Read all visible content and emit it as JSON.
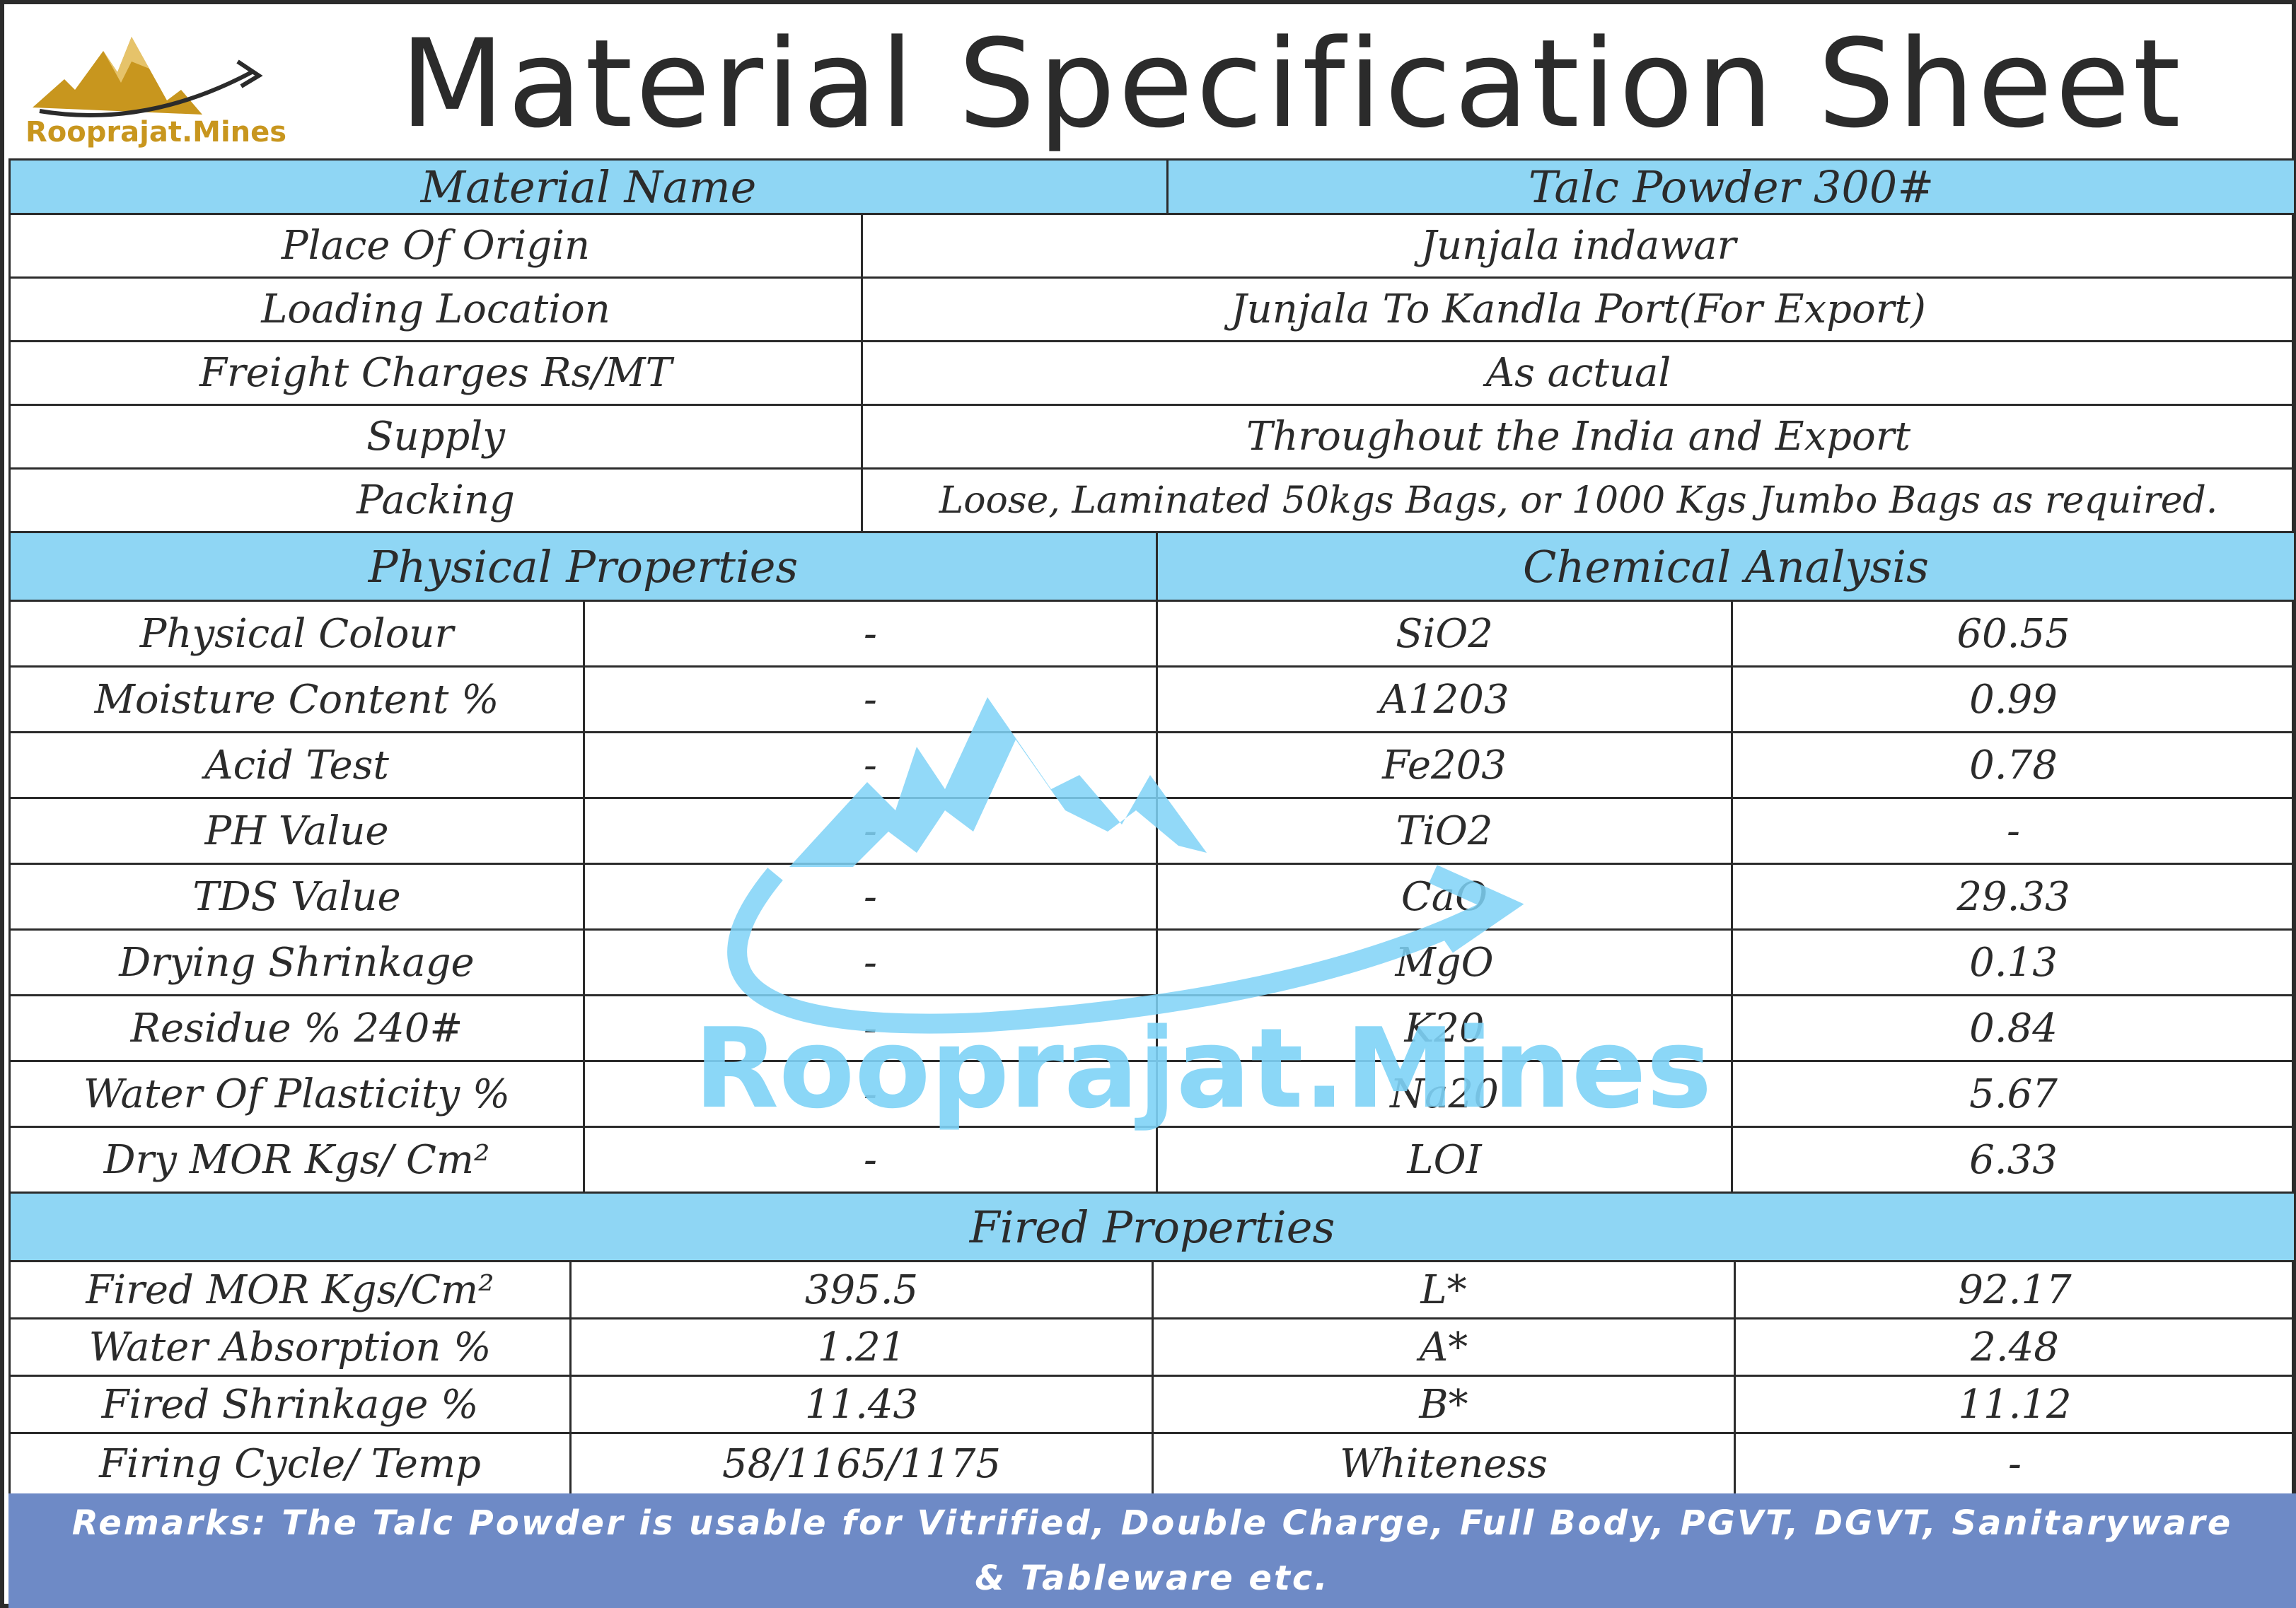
{
  "brand": {
    "name": "Rooprajat.Mines",
    "watermark_text": "Rooprajat.Mines",
    "logo_color": "#c8961e",
    "watermark_color": "#7fd3f7"
  },
  "title": "Material Specification Sheet",
  "colors": {
    "band": "#8fd6f4",
    "remarks_bg": "#6e8ac6",
    "border": "#2b2b2b"
  },
  "material": {
    "label": "Material Name",
    "value": "Talc Powder 300#"
  },
  "info_rows": [
    {
      "label": "Place Of Origin",
      "value": "Junjala indawar"
    },
    {
      "label": "Loading Location",
      "value": "Junjala To Kandla Port(For Export)"
    },
    {
      "label": "Freight Charges Rs/MT",
      "value": "As actual"
    },
    {
      "label": "Supply",
      "value": "Throughout the India and Export"
    },
    {
      "label": "Packing",
      "value": "Loose, Laminated 50kgs Bags, or 1000 Kgs Jumbo Bags as required."
    }
  ],
  "physical": {
    "heading": "Physical Properties",
    "rows": [
      {
        "label": "Physical Colour",
        "value": "-"
      },
      {
        "label": "Moisture Content %",
        "value": "-"
      },
      {
        "label": "Acid Test",
        "value": "-"
      },
      {
        "label": "PH Value",
        "value": "-"
      },
      {
        "label": "TDS Value",
        "value": "-"
      },
      {
        "label": "Drying Shrinkage",
        "value": "-"
      },
      {
        "label": "Residue % 240#",
        "value": "-"
      },
      {
        "label": "Water Of Plasticity %",
        "value": "-"
      },
      {
        "label": "Dry MOR Kgs/ Cm²",
        "value": "-"
      }
    ]
  },
  "chemical": {
    "heading": "Chemical Analysis",
    "rows": [
      {
        "label": "SiO2",
        "value": "60.55"
      },
      {
        "label": "A1203",
        "value": "0.99"
      },
      {
        "label": "Fe203",
        "value": "0.78"
      },
      {
        "label": "TiO2",
        "value": "-"
      },
      {
        "label": "CaO",
        "value": "29.33"
      },
      {
        "label": "MgO",
        "value": "0.13"
      },
      {
        "label": "K20",
        "value": "0.84"
      },
      {
        "label": "Na20",
        "value": "5.67"
      },
      {
        "label": "LOI",
        "value": "6.33"
      }
    ]
  },
  "fired": {
    "heading": "Fired Properties",
    "rows": [
      {
        "label": "Fired MOR Kgs/Cm²",
        "value": "395.5",
        "label2": "L*",
        "value2": "92.17"
      },
      {
        "label": "Water Absorption %",
        "value": "1.21",
        "label2": "A*",
        "value2": "2.48"
      },
      {
        "label": "Fired Shrinkage %",
        "value": "11.43",
        "label2": "B*",
        "value2": "11.12"
      },
      {
        "label": "Firing Cycle/ Temp",
        "value": "58/1165/1175",
        "label2": "Whiteness",
        "value2": "-"
      }
    ]
  },
  "remarks": "Remarks: The Talc Powder is usable for Vitrified, Double Charge, Full Body, PGVT, DGVT, Sanitaryware & Tableware etc."
}
